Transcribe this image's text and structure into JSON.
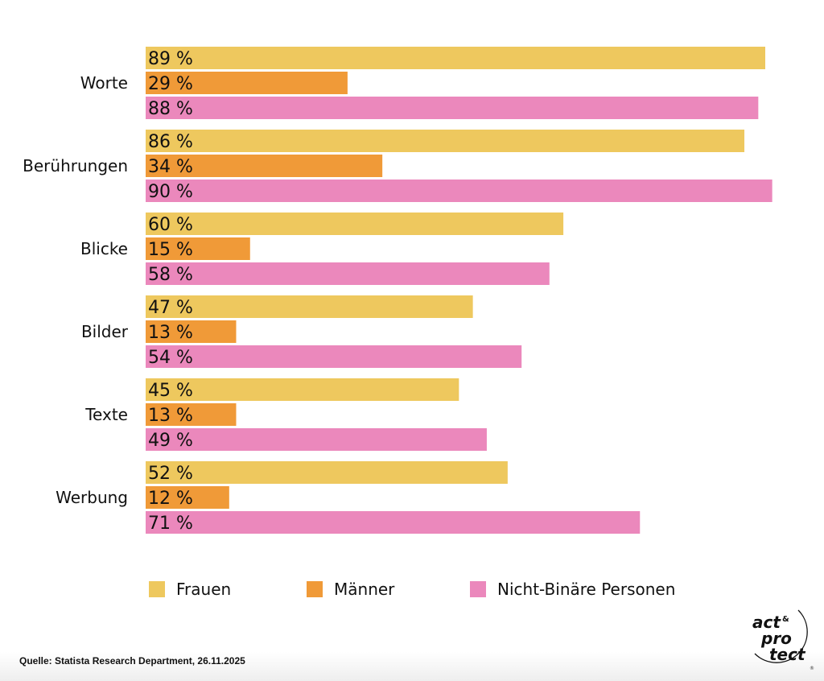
{
  "chart_data": {
    "type": "bar",
    "orientation": "horizontal",
    "categories": [
      "Worte",
      "Berührungen",
      "Blicke",
      "Bilder",
      "Texte",
      "Werbung"
    ],
    "series": [
      {
        "name": "Frauen",
        "color": "#EEC85E",
        "values": [
          89,
          86,
          60,
          47,
          45,
          52
        ]
      },
      {
        "name": "Männer",
        "color": "#F09A38",
        "values": [
          29,
          34,
          15,
          13,
          13,
          12
        ]
      },
      {
        "name": "Nicht-Binäre Personen",
        "color": "#EB88BC",
        "values": [
          88,
          90,
          58,
          54,
          49,
          71
        ]
      }
    ],
    "value_suffix": " %",
    "xlim": [
      0,
      100
    ],
    "grid": false,
    "legend_placement": "bottom"
  },
  "source": "Quelle: Statista Research Department, 26.11.2025",
  "logo": {
    "text": [
      "act",
      "&",
      "pro",
      "tect"
    ],
    "registered": "®"
  }
}
